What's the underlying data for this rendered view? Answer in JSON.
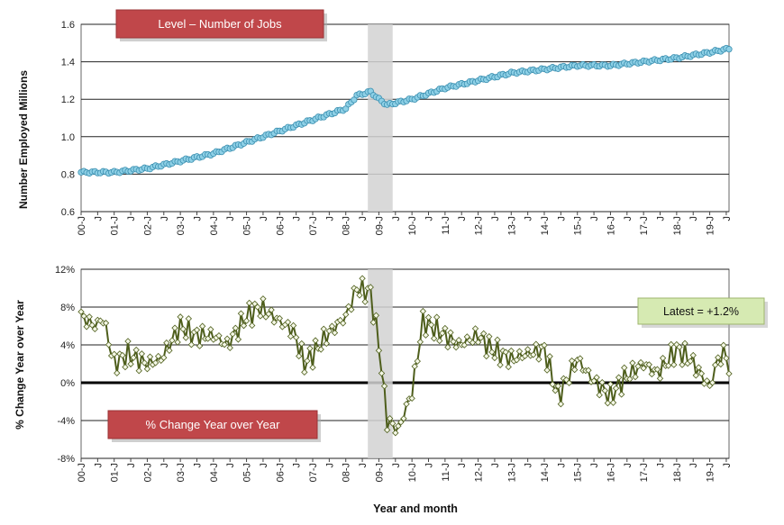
{
  "chart_data": [
    {
      "type": "line",
      "title": "Level – Number of Jobs",
      "ylabel": "Number Employed Millions",
      "ylim": [
        0.6,
        1.6
      ],
      "yticks": [
        "0.6",
        "0.8",
        "1.0",
        "1.2",
        "1.4",
        "1.6"
      ],
      "xlabels": [
        "00-J",
        "J",
        "01-J",
        "J",
        "02-J",
        "J",
        "03-J",
        "J",
        "04-J",
        "J",
        "05-J",
        "J",
        "06-J",
        "J",
        "07-J",
        "J",
        "08-J",
        "J",
        "09-J",
        "J",
        "10-J",
        "J",
        "11-J",
        "J",
        "12-J",
        "J",
        "13-J",
        "J",
        "14-J",
        "J",
        "15-J",
        "J",
        "16-J",
        "J",
        "17-J",
        "J",
        "18-J",
        "J",
        "19-J",
        "J"
      ],
      "x_start": "2000-01",
      "x_end": "2019-08",
      "shaded_period": [
        "2008-09",
        "2009-06"
      ],
      "marker_color": "#8ed0e6",
      "marker_edge": "#3b8fb0",
      "anchors": [
        {
          "x": "2000-01",
          "y": 0.81
        },
        {
          "x": "2001-01",
          "y": 0.81
        },
        {
          "x": "2002-01",
          "y": 0.83
        },
        {
          "x": "2003-01",
          "y": 0.87
        },
        {
          "x": "2004-01",
          "y": 0.91
        },
        {
          "x": "2005-01",
          "y": 0.97
        },
        {
          "x": "2006-01",
          "y": 1.03
        },
        {
          "x": "2007-01",
          "y": 1.09
        },
        {
          "x": "2008-01",
          "y": 1.15
        },
        {
          "x": "2008-05",
          "y": 1.22
        },
        {
          "x": "2008-10",
          "y": 1.24
        },
        {
          "x": "2009-01",
          "y": 1.2
        },
        {
          "x": "2009-04",
          "y": 1.17
        },
        {
          "x": "2010-01",
          "y": 1.2
        },
        {
          "x": "2011-01",
          "y": 1.26
        },
        {
          "x": "2012-01",
          "y": 1.3
        },
        {
          "x": "2013-01",
          "y": 1.34
        },
        {
          "x": "2014-01",
          "y": 1.36
        },
        {
          "x": "2015-01",
          "y": 1.38
        },
        {
          "x": "2016-01",
          "y": 1.38
        },
        {
          "x": "2017-01",
          "y": 1.4
        },
        {
          "x": "2018-01",
          "y": 1.42
        },
        {
          "x": "2019-01",
          "y": 1.45
        },
        {
          "x": "2019-08",
          "y": 1.47
        }
      ]
    },
    {
      "type": "line",
      "title": "% Change Year over Year",
      "ylabel": "% Change Year over Year",
      "xlabel": "Year and month",
      "ylim": [
        -8,
        12
      ],
      "yticks": [
        "-8%",
        "-4%",
        "0%",
        "4%",
        "8%",
        "12%"
      ],
      "xlabels": [
        "00-J",
        "J",
        "01-J",
        "J",
        "02-J",
        "J",
        "03-J",
        "J",
        "04-J",
        "J",
        "05-J",
        "J",
        "06-J",
        "J",
        "07-J",
        "J",
        "08-J",
        "J",
        "09-J",
        "J",
        "10-J",
        "J",
        "11-J",
        "J",
        "12-J",
        "J",
        "13-J",
        "J",
        "14-J",
        "J",
        "15-J",
        "J",
        "16-J",
        "J",
        "17-J",
        "J",
        "18-J",
        "J",
        "19-J",
        "J"
      ],
      "x_start": "2000-01",
      "x_end": "2019-08",
      "shaded_period": [
        "2008-09",
        "2009-06"
      ],
      "line_color": "#4e5e1c",
      "marker_color": "#f4f7e6",
      "latest_label": "Latest = +1.2%",
      "anchors": [
        {
          "x": "2000-01",
          "y": 7.0
        },
        {
          "x": "2000-06",
          "y": 6.0
        },
        {
          "x": "2000-09",
          "y": 6.8
        },
        {
          "x": "2001-01",
          "y": 2.0
        },
        {
          "x": "2001-06",
          "y": 3.0
        },
        {
          "x": "2002-01",
          "y": 2.0
        },
        {
          "x": "2002-06",
          "y": 2.5
        },
        {
          "x": "2003-01",
          "y": 6.0
        },
        {
          "x": "2003-06",
          "y": 5.0
        },
        {
          "x": "2004-01",
          "y": 5.0
        },
        {
          "x": "2004-06",
          "y": 4.0
        },
        {
          "x": "2005-01",
          "y": 7.0
        },
        {
          "x": "2005-06",
          "y": 8.0
        },
        {
          "x": "2006-01",
          "y": 6.5
        },
        {
          "x": "2006-06",
          "y": 5.5
        },
        {
          "x": "2006-10",
          "y": 2.0
        },
        {
          "x": "2007-01",
          "y": 3.0
        },
        {
          "x": "2007-06",
          "y": 5.0
        },
        {
          "x": "2008-01",
          "y": 7.0
        },
        {
          "x": "2008-05",
          "y": 10.0
        },
        {
          "x": "2008-10",
          "y": 9.5
        },
        {
          "x": "2009-01",
          "y": 4.0
        },
        {
          "x": "2009-04",
          "y": -4.0
        },
        {
          "x": "2009-08",
          "y": -5.0
        },
        {
          "x": "2010-01",
          "y": -1.0
        },
        {
          "x": "2010-05",
          "y": 6.5
        },
        {
          "x": "2011-01",
          "y": 5.0
        },
        {
          "x": "2011-06",
          "y": 4.0
        },
        {
          "x": "2012-01",
          "y": 5.0
        },
        {
          "x": "2012-06",
          "y": 3.5
        },
        {
          "x": "2013-01",
          "y": 2.5
        },
        {
          "x": "2013-06",
          "y": 3.0
        },
        {
          "x": "2014-01",
          "y": 3.5
        },
        {
          "x": "2014-06",
          "y": -1.5
        },
        {
          "x": "2015-01",
          "y": 2.5
        },
        {
          "x": "2015-06",
          "y": 0.5
        },
        {
          "x": "2016-01",
          "y": -1.5
        },
        {
          "x": "2016-06",
          "y": 0.5
        },
        {
          "x": "2017-01",
          "y": 2.0
        },
        {
          "x": "2017-06",
          "y": 1.0
        },
        {
          "x": "2018-01",
          "y": 3.5
        },
        {
          "x": "2018-06",
          "y": 2.5
        },
        {
          "x": "2019-01",
          "y": -0.5
        },
        {
          "x": "2019-04",
          "y": 2.5
        },
        {
          "x": "2019-07",
          "y": 3.2
        },
        {
          "x": "2019-08",
          "y": 1.2
        }
      ]
    }
  ]
}
